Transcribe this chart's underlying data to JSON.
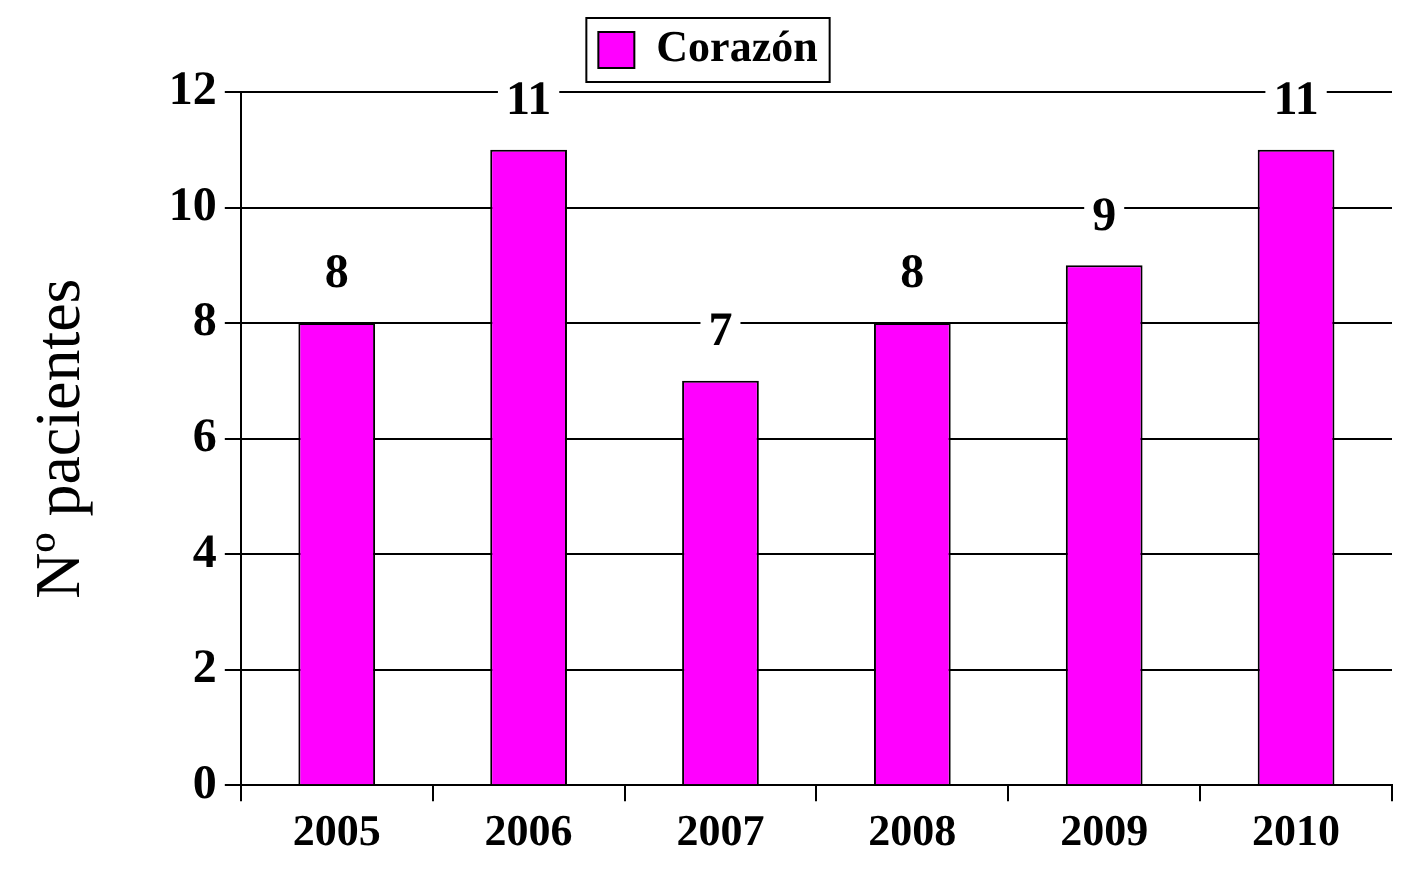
{
  "chart_data": {
    "type": "bar",
    "categories": [
      "2005",
      "2006",
      "2007",
      "2008",
      "2009",
      "2010"
    ],
    "series": [
      {
        "name": "Corazón",
        "color": "#ff00ff",
        "values": [
          8,
          11,
          7,
          8,
          9,
          11
        ]
      }
    ],
    "ylabel": "Nº pacientes",
    "ylim": [
      0,
      12
    ],
    "yticks": [
      0,
      2,
      4,
      6,
      8,
      10,
      12
    ],
    "grid": "y",
    "legend": "top",
    "data_labels": true
  }
}
